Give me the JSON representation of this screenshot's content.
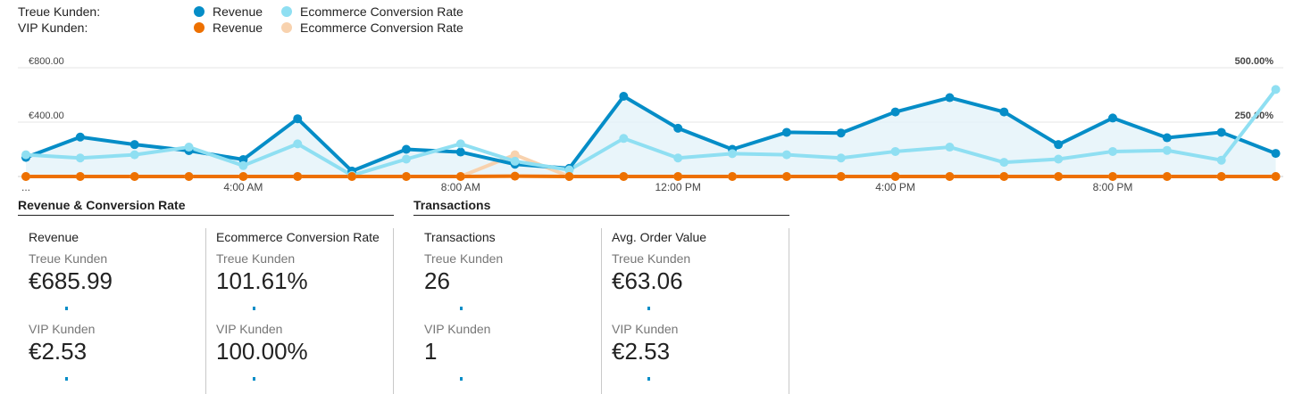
{
  "legend": {
    "rows": [
      {
        "segment": "Treue Kunden:",
        "items": [
          {
            "label": "Revenue",
            "color": "#058dc7"
          },
          {
            "label": "Ecommerce Conversion Rate",
            "color": "#8fdff2"
          }
        ]
      },
      {
        "segment": "VIP Kunden:",
        "items": [
          {
            "label": "Revenue",
            "color": "#ed7000"
          },
          {
            "label": "Ecommerce Conversion Rate",
            "color": "#f8d2ae"
          }
        ]
      }
    ]
  },
  "chart_data": {
    "type": "line",
    "left_axis": {
      "ticks": [
        "€800.00",
        "€400.00"
      ],
      "range": [
        0,
        800
      ]
    },
    "right_axis": {
      "ticks": [
        "500.00%",
        "250.00%"
      ],
      "range": [
        0,
        500
      ]
    },
    "x_tick_labels": [
      "...",
      "4:00 AM",
      "8:00 AM",
      "12:00 PM",
      "4:00 PM",
      "8:00 PM"
    ],
    "x_tick_hours": [
      0,
      4,
      8,
      12,
      16,
      20
    ],
    "series": [
      {
        "name": "Revenue",
        "segment": "Treue Kunden",
        "axis": "left",
        "color": "#058dc7",
        "fill": true,
        "values": [
          140,
          290,
          235,
          190,
          125,
          425,
          40,
          200,
          180,
          90,
          60,
          590,
          355,
          200,
          325,
          320,
          475,
          580,
          475,
          235,
          430,
          285,
          325,
          170
        ]
      },
      {
        "name": "Ecommerce Conversion Rate",
        "segment": "Treue Kunden",
        "axis": "right",
        "color": "#8fdff2",
        "fill": false,
        "values": [
          100,
          85,
          100,
          135,
          50,
          150,
          5,
          80,
          150,
          70,
          30,
          175,
          85,
          105,
          100,
          85,
          115,
          135,
          65,
          80,
          115,
          120,
          75,
          400
        ]
      },
      {
        "name": "Revenue",
        "segment": "VIP Kunden",
        "axis": "left",
        "color": "#ed7000",
        "fill": false,
        "values": [
          0,
          0,
          0,
          0,
          0,
          0,
          0,
          0,
          0,
          2.53,
          0,
          0,
          0,
          0,
          0,
          0,
          0,
          0,
          0,
          0,
          0,
          0,
          0,
          0
        ]
      },
      {
        "name": "Ecommerce Conversion Rate",
        "segment": "VIP Kunden",
        "axis": "right",
        "color": "#f8d2ae",
        "fill": false,
        "values": [
          0,
          0,
          0,
          0,
          0,
          0,
          0,
          0,
          0,
          100,
          0,
          0,
          0,
          0,
          0,
          0,
          0,
          0,
          0,
          0,
          0,
          0,
          0,
          0
        ]
      }
    ]
  },
  "sections": [
    {
      "title": "Revenue & Conversion Rate",
      "cards": [
        {
          "title": "Revenue",
          "seg1": "Treue Kunden",
          "val1": "€685.99",
          "seg2": "VIP Kunden",
          "val2": "€2.53"
        },
        {
          "title": "Ecommerce Conversion Rate",
          "seg1": "Treue Kunden",
          "val1": "101.61%",
          "seg2": "VIP Kunden",
          "val2": "100.00%"
        }
      ]
    },
    {
      "title": "Transactions",
      "cards": [
        {
          "title": "Transactions",
          "seg1": "Treue Kunden",
          "val1": "26",
          "seg2": "VIP Kunden",
          "val2": "1"
        },
        {
          "title": "Avg. Order Value",
          "seg1": "Treue Kunden",
          "val1": "€63.06",
          "seg2": "VIP Kunden",
          "val2": "€2.53"
        }
      ]
    }
  ]
}
